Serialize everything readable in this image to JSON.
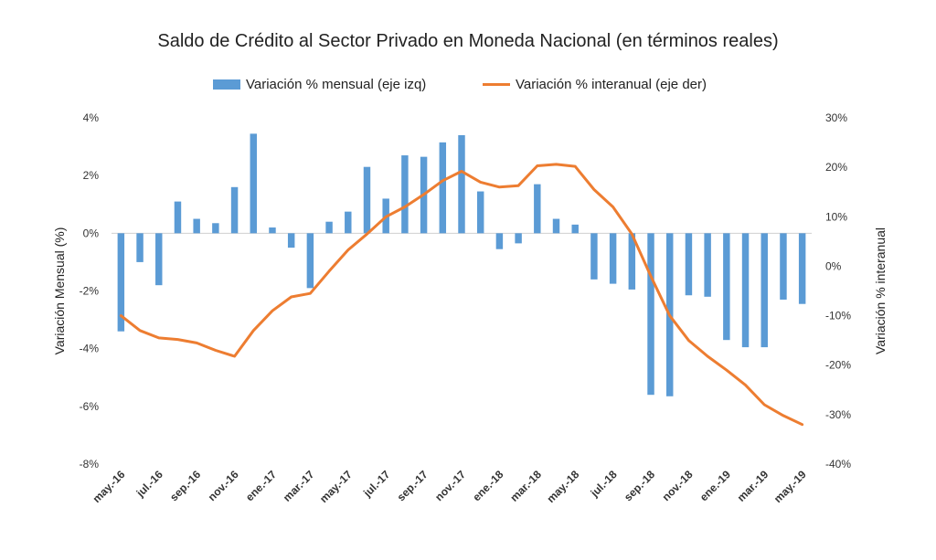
{
  "chart_data": {
    "type": "bar",
    "title": "Saldo de Crédito al Sector Privado en Moneda Nacional (en términos reales)",
    "ylabel": "Variación Mensual (%)",
    "y2label": "Variación % interanual",
    "ylim": [
      -8,
      4
    ],
    "y2lim": [
      -40,
      30
    ],
    "y_ticks": [
      "4%",
      "2%",
      "0%",
      "-2%",
      "-4%",
      "-6%",
      "-8%"
    ],
    "y2_ticks": [
      "30%",
      "20%",
      "10%",
      "0%",
      "-10%",
      "-20%",
      "-30%",
      "-40%"
    ],
    "x_tick_labels": [
      "may.-16",
      "jul.-16",
      "sep.-16",
      "nov.-16",
      "ene.-17",
      "mar.-17",
      "may.-17",
      "jul.-17",
      "sep.-17",
      "nov.-17",
      "ene.-18",
      "mar.-18",
      "may.-18",
      "jul.-18",
      "sep.-18",
      "nov.-18",
      "ene.-19",
      "mar.-19",
      "may.-19"
    ],
    "categories": [
      "may.-16",
      "jun.-16",
      "jul.-16",
      "ago.-16",
      "sep.-16",
      "oct.-16",
      "nov.-16",
      "dic.-16",
      "ene.-17",
      "feb.-17",
      "mar.-17",
      "abr.-17",
      "may.-17",
      "jun.-17",
      "jul.-17",
      "ago.-17",
      "sep.-17",
      "oct.-17",
      "nov.-17",
      "dic.-17",
      "ene.-18",
      "feb.-18",
      "mar.-18",
      "abr.-18",
      "may.-18",
      "jun.-18",
      "jul.-18",
      "ago.-18",
      "sep.-18",
      "oct.-18",
      "nov.-18",
      "dic.-18",
      "ene.-19",
      "feb.-19",
      "mar.-19",
      "abr.-19",
      "may.-19"
    ],
    "series": [
      {
        "name": "Variación % mensual (eje izq)",
        "kind": "bar",
        "axis": "left",
        "color": "#5B9BD5",
        "values": [
          -3.4,
          -1.0,
          -1.8,
          1.1,
          0.5,
          0.35,
          1.6,
          3.45,
          0.2,
          -0.5,
          -1.9,
          0.4,
          0.75,
          2.3,
          1.2,
          2.7,
          2.65,
          3.15,
          3.4,
          1.45,
          -0.55,
          -0.35,
          1.7,
          0.5,
          0.3,
          -1.6,
          -1.75,
          -1.95,
          -5.6,
          -5.65,
          -2.15,
          -2.2,
          -3.7,
          -3.95,
          -3.95,
          -2.3,
          -2.45
        ]
      },
      {
        "name": "Variación % interanual (eje der)",
        "kind": "line",
        "axis": "right",
        "color": "#ED7D31",
        "values": [
          -10,
          -13,
          -14.5,
          -14.8,
          -15.5,
          -17,
          -18.2,
          -13,
          -9,
          -6.2,
          -5.5,
          -1,
          3.3,
          6.5,
          10,
          12,
          14.5,
          17.3,
          19.2,
          17,
          16,
          16.3,
          20.3,
          20.6,
          20.2,
          15.5,
          12,
          6.5,
          -2,
          -10,
          -15,
          -18.2,
          -21,
          -24,
          -28,
          -30.2,
          -32
        ]
      }
    ],
    "grid": false,
    "legend_position": "top"
  }
}
